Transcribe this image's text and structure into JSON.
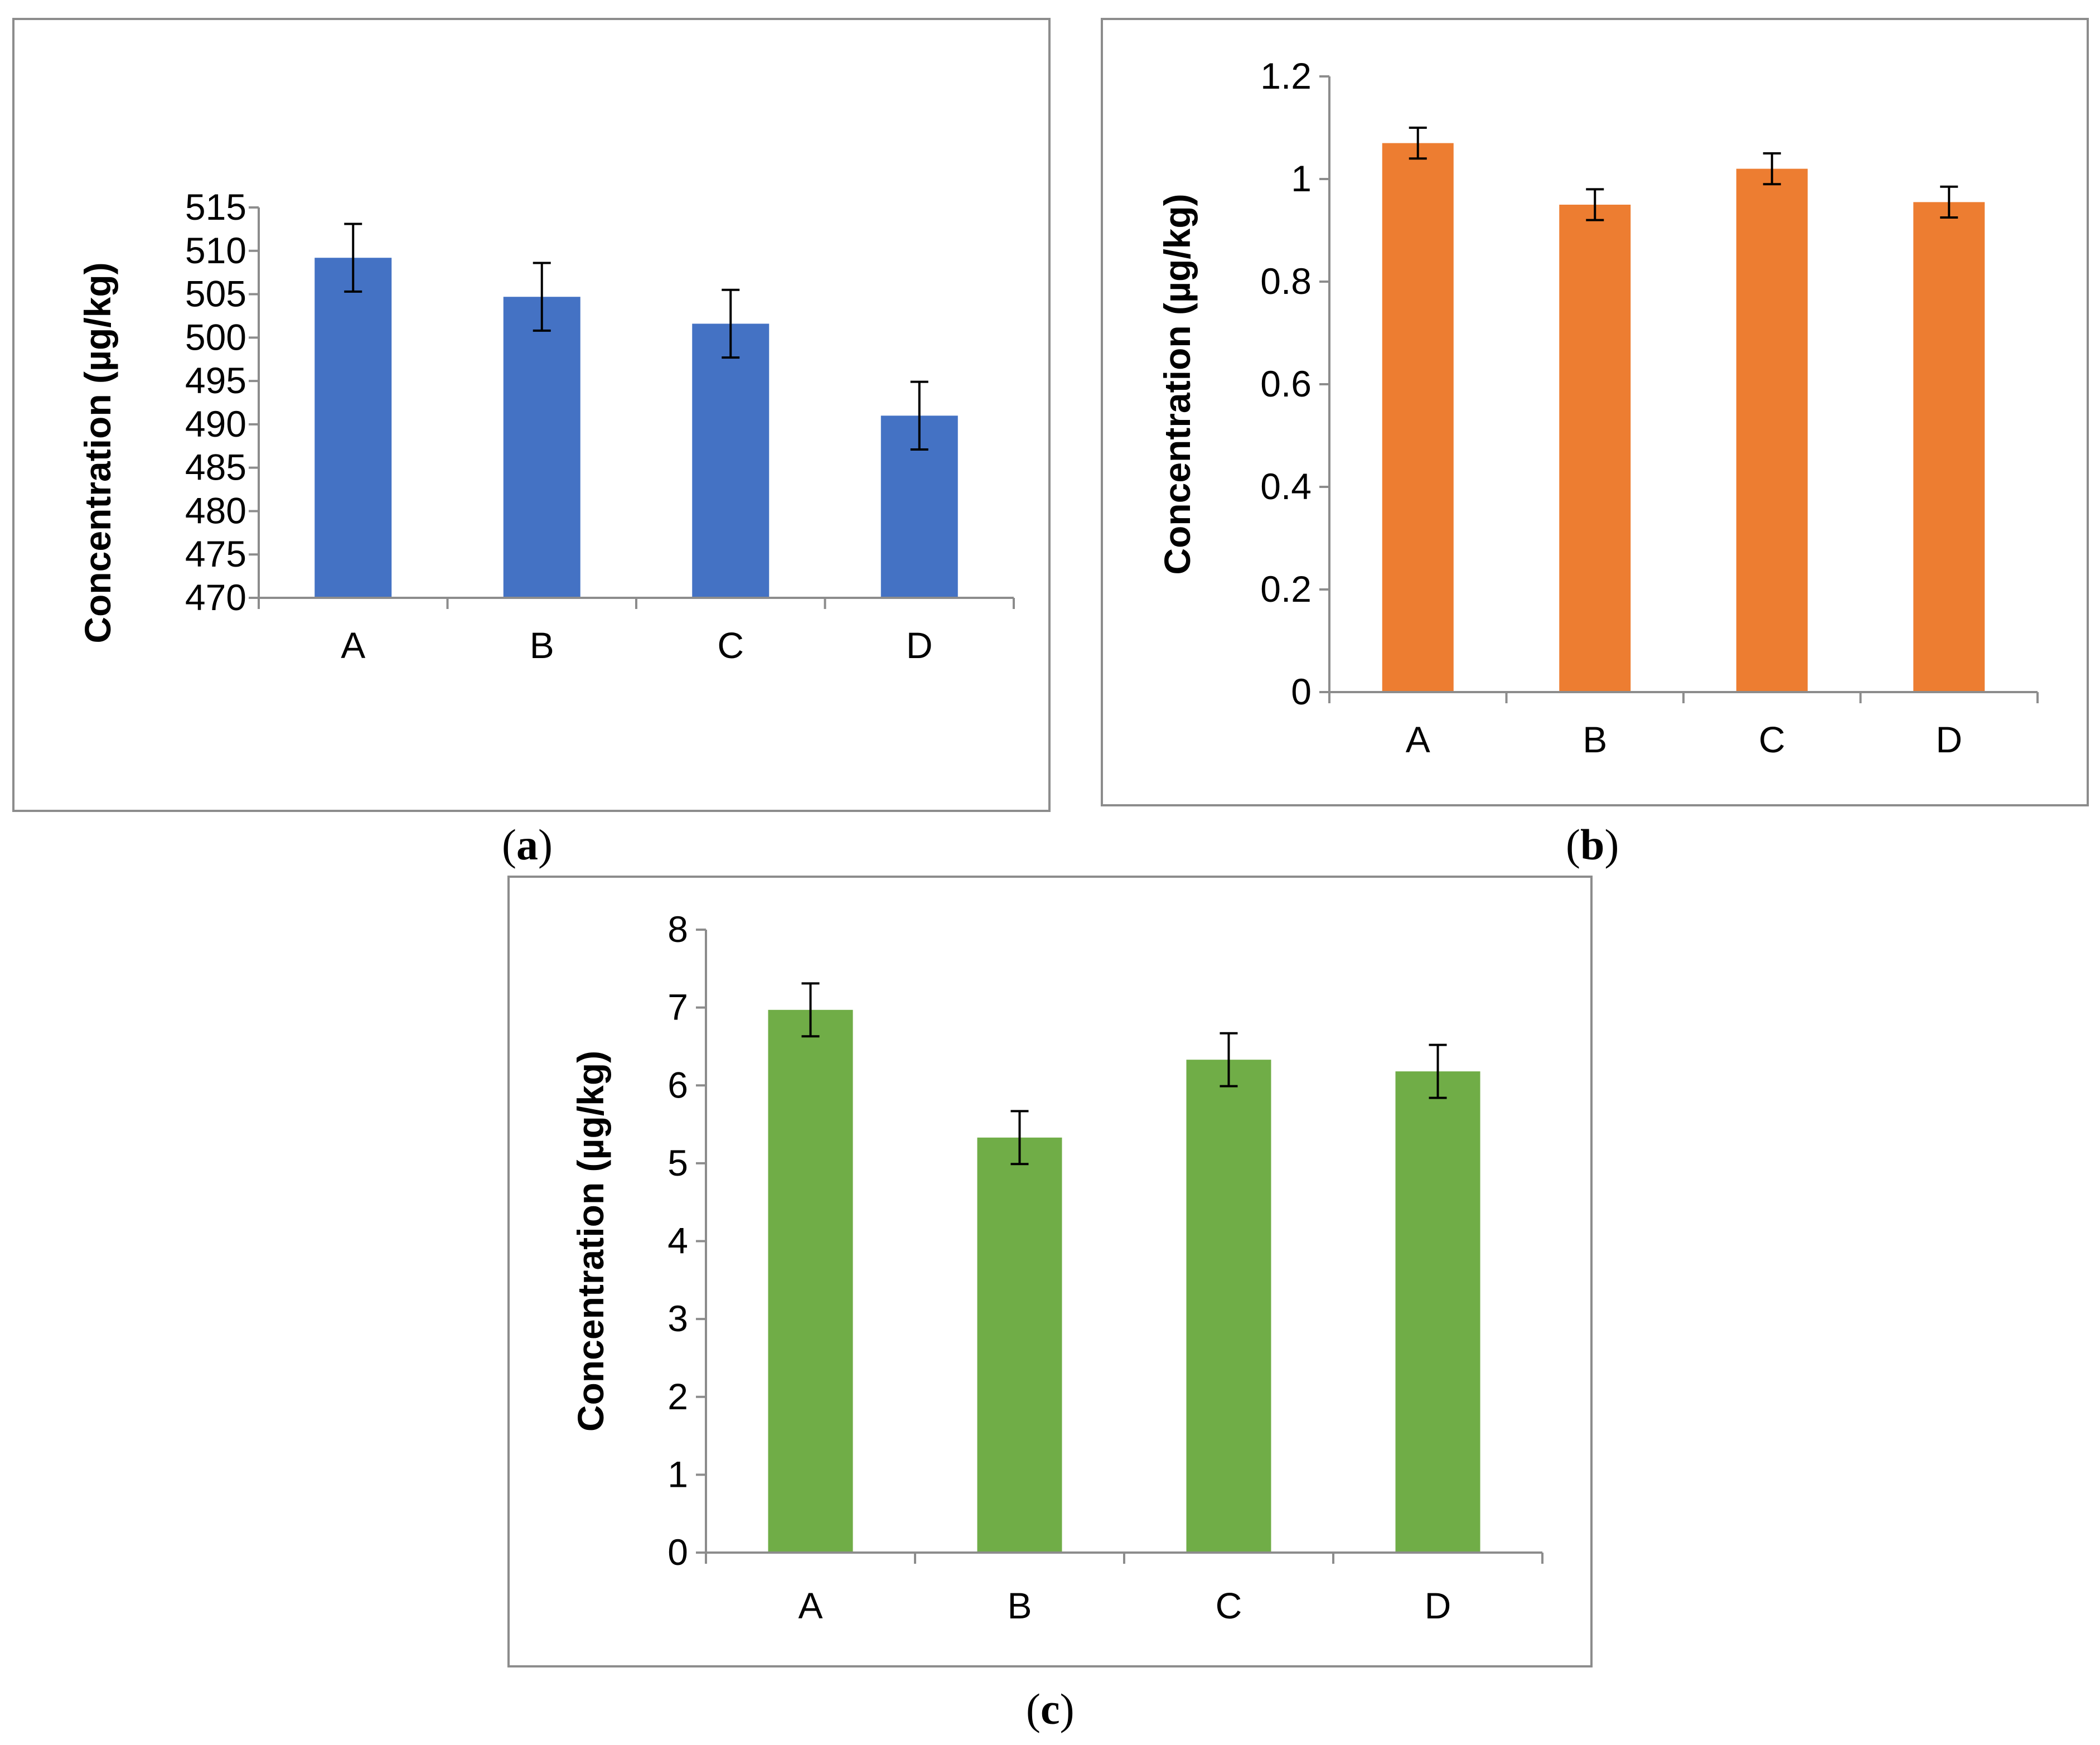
{
  "chart_data": [
    {
      "type": "bar",
      "panel_label": "a",
      "categories": [
        "A",
        "B",
        "C",
        "D"
      ],
      "values": [
        509.2,
        504.7,
        501.6,
        491.0
      ],
      "errors": [
        3.9,
        3.9,
        3.9,
        3.9
      ],
      "ylabel": "Concentration (µg/kg)",
      "ylim": [
        470,
        515
      ],
      "yticks": [
        470,
        475,
        480,
        485,
        490,
        495,
        500,
        505,
        510,
        515
      ],
      "ytick_labels": [
        "470",
        "475",
        "480",
        "485",
        "490",
        "495",
        "500",
        "505",
        "510",
        "515"
      ],
      "color": "#4472C4",
      "grid": false,
      "legend": "none"
    },
    {
      "type": "bar",
      "panel_label": "b",
      "categories": [
        "A",
        "B",
        "C",
        "D"
      ],
      "values": [
        1.07,
        0.95,
        1.02,
        0.955
      ],
      "errors": [
        0.03,
        0.03,
        0.03,
        0.03
      ],
      "ylabel": "Concentration (µg/kg)",
      "ylim": [
        0,
        1.2
      ],
      "yticks": [
        0,
        0.2,
        0.4,
        0.6,
        0.8,
        1.0,
        1.2
      ],
      "ytick_labels": [
        "0",
        "0.2",
        "0.4",
        "0.6",
        "0.8",
        "1",
        "1.2"
      ],
      "color": "#ED7D31",
      "grid": false,
      "legend": "none"
    },
    {
      "type": "bar",
      "panel_label": "c",
      "categories": [
        "A",
        "B",
        "C",
        "D"
      ],
      "values": [
        6.97,
        5.33,
        6.33,
        6.18
      ],
      "errors": [
        0.34,
        0.34,
        0.34,
        0.34
      ],
      "ylabel": "Concentration (µg/kg)",
      "ylim": [
        0,
        8
      ],
      "yticks": [
        0,
        1,
        2,
        3,
        4,
        5,
        6,
        7,
        8
      ],
      "ytick_labels": [
        "0",
        "1",
        "2",
        "3",
        "4",
        "5",
        "6",
        "7",
        "8"
      ],
      "color": "#70AD47",
      "grid": false,
      "legend": "none"
    }
  ]
}
